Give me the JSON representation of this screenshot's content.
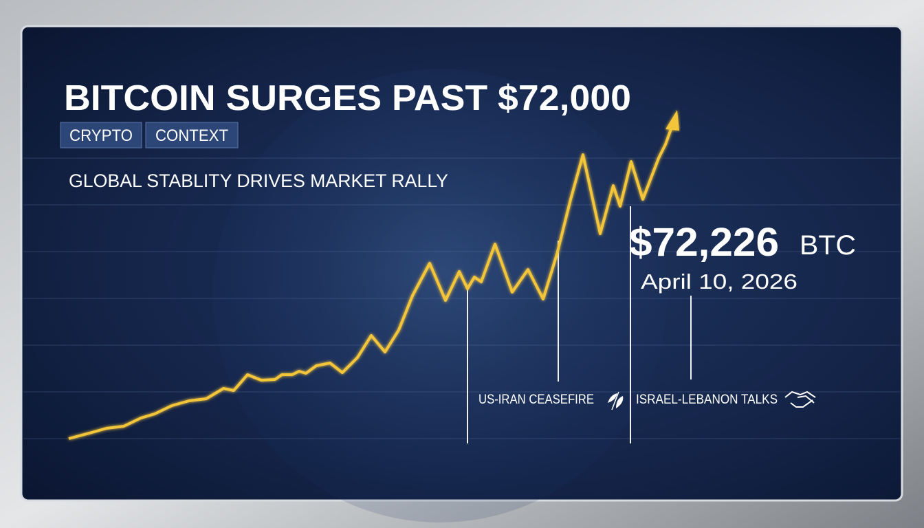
{
  "header": {
    "title": "BITCOIN SURGES PAST $72,000",
    "tags": [
      "CRYPTO",
      "CONTEXT"
    ],
    "subtitle": "GLOBAL STABLITY DRIVES MARKET RALLY"
  },
  "price": {
    "value": "$72,226",
    "ticker": "BTC",
    "date": "April 10, 2026"
  },
  "events": [
    "US-IRAN CEASEFIRE",
    "ISRAEL-LEBANON TALKS"
  ]
}
